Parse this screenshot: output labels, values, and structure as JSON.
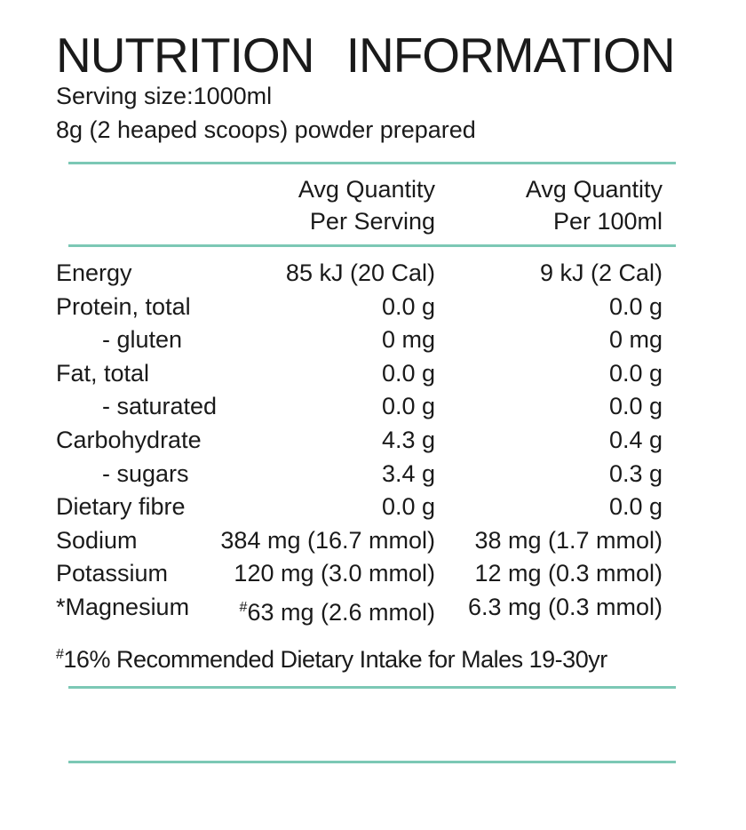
{
  "title": "NUTRITION INFORMATION",
  "serving": [
    "Serving size:1000ml",
    "8g (2 heaped scoops) powder prepared"
  ],
  "table": {
    "header": [
      [
        "Avg Quantity",
        "Per Serving"
      ],
      [
        "Avg Quantity",
        "Per 100ml"
      ]
    ],
    "rows": [
      {
        "cells": [
          "Energy",
          "85 kJ (20 Cal)",
          "9 kJ (2 Cal)"
        ]
      },
      {
        "cells": [
          "Protein, total",
          "0.0 g",
          "0.0 g"
        ]
      },
      {
        "cells": [
          "- gluten",
          "0 mg",
          "0 mg"
        ],
        "indent": true
      },
      {
        "cells": [
          "Fat, total",
          "0.0 g",
          "0.0 g"
        ]
      },
      {
        "cells": [
          "- saturated",
          "0.0 g",
          "0.0 g"
        ],
        "indent": true
      },
      {
        "cells": [
          "Carbohydrate",
          "4.3 g",
          "0.4 g"
        ]
      },
      {
        "cells": [
          "- sugars",
          "3.4 g",
          "0.3 g"
        ],
        "indent": true
      },
      {
        "cells": [
          "Dietary fibre",
          "0.0 g",
          "0.0 g"
        ]
      },
      {
        "cells": [
          "Sodium",
          "384 mg (16.7 mmol)",
          "38 mg (1.7 mmol)"
        ]
      },
      {
        "cells": [
          "Potassium",
          "120 mg (3.0 mmol)",
          "12 mg (0.3 mmol)"
        ]
      },
      {
        "cells": [
          "*Magnesium",
          {
            "sup": "#",
            "text": "63 mg (2.6 mmol)"
          },
          "6.3 mg (0.3 mmol)"
        ]
      }
    ]
  },
  "footnote": {
    "sup": "#",
    "text": "16% Recommended Dietary Intake for Males 19-30yr"
  }
}
